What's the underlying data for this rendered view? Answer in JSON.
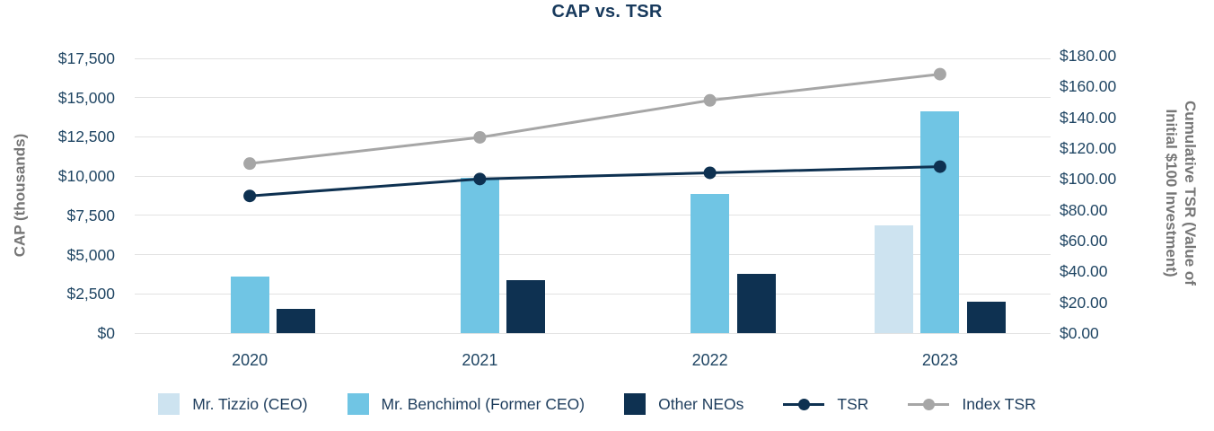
{
  "chart_data": {
    "type": "combo-bar-line",
    "title": "CAP vs. TSR",
    "categories": [
      "2020",
      "2021",
      "2022",
      "2023"
    ],
    "bar_series": [
      {
        "name": "Mr. Tizzio (CEO)",
        "color": "#cde3f0",
        "values": [
          null,
          null,
          null,
          6850
        ]
      },
      {
        "name": "Mr. Benchimol (Former CEO)",
        "color": "#70c5e4",
        "values": [
          3600,
          9900,
          8850,
          14150
        ]
      },
      {
        "name": "Other NEOs",
        "color": "#0e3151",
        "values": [
          1550,
          3400,
          3750,
          2000
        ]
      }
    ],
    "line_series": [
      {
        "name": "TSR",
        "color": "#0e3151",
        "values": [
          89,
          100,
          104,
          108
        ]
      },
      {
        "name": "Index TSR",
        "color": "#a6a6a6",
        "values": [
          110,
          127,
          151,
          168
        ]
      }
    ],
    "left_axis": {
      "title": "CAP (thousands)",
      "min": 0,
      "max": 17500,
      "step": 2500,
      "tick_labels": [
        "$0",
        "$2,500",
        "$5,000",
        "$7,500",
        "$10,000",
        "$12,500",
        "$15,000",
        "$17,500"
      ]
    },
    "right_axis": {
      "title_line1": "Cumulative TSR (Value of",
      "title_line2": "Initial $100 Investment)",
      "min": 0,
      "max": 180,
      "step": 20,
      "tick_labels": [
        "$0.00",
        "$20.00",
        "$40.00",
        "$60.00",
        "$80.00",
        "$100.00",
        "$120.00",
        "$140.00",
        "$160.00",
        "$180.00"
      ]
    },
    "grid": true,
    "legend_position": "bottom"
  },
  "colors": {
    "title_text": "#17395c",
    "tick_text": "#1f4563",
    "axis_title_text": "#767676",
    "legend_text": "#1d3c5c",
    "gridline": "#e2e2e2"
  }
}
